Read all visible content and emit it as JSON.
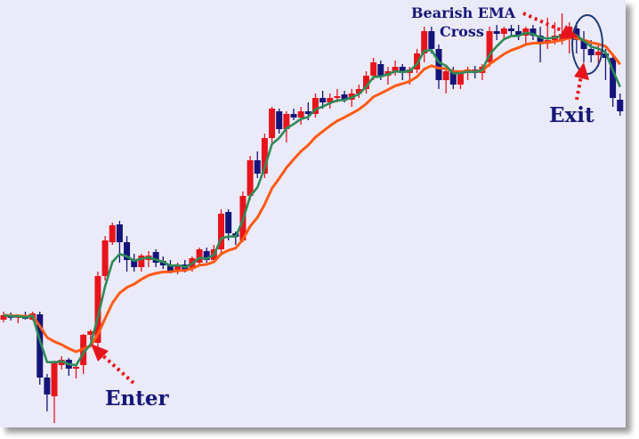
{
  "chart_data": {
    "type": "candlestick",
    "title": "",
    "xlabel": "",
    "ylabel": "",
    "grid": false,
    "colors": {
      "bullish": "#e8141c",
      "bearish": "#14147a",
      "fast_ema": "#2e8b57",
      "slow_ema": "#ff5a14",
      "annotation_text": "#16167a",
      "arrow": "#e8141c",
      "background": "#ebeaf8"
    },
    "series": [
      {
        "type": "ema-fast"
      },
      {
        "type": "ema-slow"
      }
    ],
    "candles_ohlc": [
      [
        141,
        150,
        138,
        146
      ],
      [
        146,
        149,
        140,
        143
      ],
      [
        143,
        147,
        137,
        145
      ],
      [
        145,
        150,
        141,
        142
      ],
      [
        141,
        150,
        140,
        148
      ],
      [
        147,
        150,
        68,
        76
      ],
      [
        76,
        80,
        38,
        57
      ],
      [
        55,
        95,
        25,
        93
      ],
      [
        90,
        100,
        85,
        96
      ],
      [
        96,
        98,
        78,
        86
      ],
      [
        86,
        90,
        75,
        88
      ],
      [
        90,
        125,
        80,
        124
      ],
      [
        124,
        130,
        118,
        128
      ],
      [
        115,
        195,
        100,
        190
      ],
      [
        190,
        235,
        185,
        230
      ],
      [
        228,
        250,
        225,
        247
      ],
      [
        248,
        252,
        205,
        228
      ],
      [
        228,
        235,
        195,
        208
      ],
      [
        208,
        215,
        195,
        200
      ],
      [
        200,
        215,
        195,
        213
      ],
      [
        208,
        218,
        200,
        213
      ],
      [
        217,
        220,
        200,
        205
      ],
      [
        207,
        212,
        198,
        202
      ],
      [
        202,
        208,
        193,
        195
      ],
      [
        196,
        205,
        192,
        203
      ],
      [
        203,
        208,
        194,
        197
      ],
      [
        198,
        212,
        195,
        210
      ],
      [
        205,
        222,
        202,
        220
      ],
      [
        218,
        222,
        205,
        208
      ],
      [
        208,
        225,
        205,
        220
      ],
      [
        220,
        265,
        215,
        260
      ],
      [
        262,
        265,
        230,
        238
      ],
      [
        238,
        240,
        225,
        234
      ],
      [
        230,
        285,
        228,
        280
      ],
      [
        280,
        325,
        275,
        320
      ],
      [
        320,
        330,
        300,
        305
      ],
      [
        305,
        350,
        300,
        345
      ],
      [
        345,
        380,
        340,
        378
      ],
      [
        375,
        378,
        350,
        355
      ],
      [
        355,
        375,
        340,
        372
      ],
      [
        372,
        378,
        365,
        368
      ],
      [
        368,
        380,
        360,
        375
      ],
      [
        375,
        385,
        365,
        372
      ],
      [
        372,
        395,
        368,
        390
      ],
      [
        390,
        398,
        378,
        385
      ],
      [
        385,
        395,
        378,
        390
      ],
      [
        390,
        400,
        385,
        392
      ],
      [
        394,
        398,
        385,
        388
      ],
      [
        388,
        400,
        380,
        395
      ],
      [
        395,
        405,
        390,
        400
      ],
      [
        400,
        420,
        395,
        415
      ],
      [
        415,
        435,
        410,
        430
      ],
      [
        428,
        432,
        410,
        415
      ],
      [
        415,
        425,
        405,
        420
      ],
      [
        420,
        432,
        415,
        425
      ],
      [
        425,
        428,
        410,
        418
      ],
      [
        418,
        425,
        405,
        422
      ],
      [
        422,
        445,
        418,
        440
      ],
      [
        440,
        470,
        430,
        465
      ],
      [
        465,
        470,
        440,
        445
      ],
      [
        445,
        450,
        400,
        410
      ],
      [
        410,
        425,
        395,
        420
      ],
      [
        420,
        425,
        400,
        405
      ],
      [
        405,
        420,
        400,
        418
      ],
      [
        418,
        425,
        410,
        422
      ],
      [
        422,
        426,
        412,
        418
      ],
      [
        418,
        428,
        410,
        425
      ],
      [
        430,
        470,
        425,
        465
      ],
      [
        465,
        472,
        455,
        462
      ],
      [
        462,
        470,
        455,
        468
      ],
      [
        468,
        472,
        460,
        465
      ],
      [
        465,
        472,
        455,
        460
      ],
      [
        460,
        470,
        450,
        468
      ],
      [
        468,
        472,
        455,
        460
      ],
      [
        460,
        470,
        430,
        452
      ],
      [
        452,
        480,
        445,
        455
      ],
      [
        455,
        475,
        450,
        460
      ],
      [
        460,
        485,
        450,
        462
      ],
      [
        458,
        475,
        440,
        470
      ],
      [
        468,
        475,
        440,
        455
      ],
      [
        455,
        465,
        430,
        445
      ],
      [
        445,
        455,
        430,
        438
      ],
      [
        438,
        450,
        425,
        442
      ],
      [
        440,
        445,
        410,
        435
      ],
      [
        435,
        440,
        380,
        390
      ],
      [
        388,
        395,
        370,
        375
      ]
    ],
    "annotations": {
      "cross_line1": "Bearish EMA",
      "cross_line2": "Cross",
      "exit": "Exit",
      "enter": "Enter"
    }
  }
}
